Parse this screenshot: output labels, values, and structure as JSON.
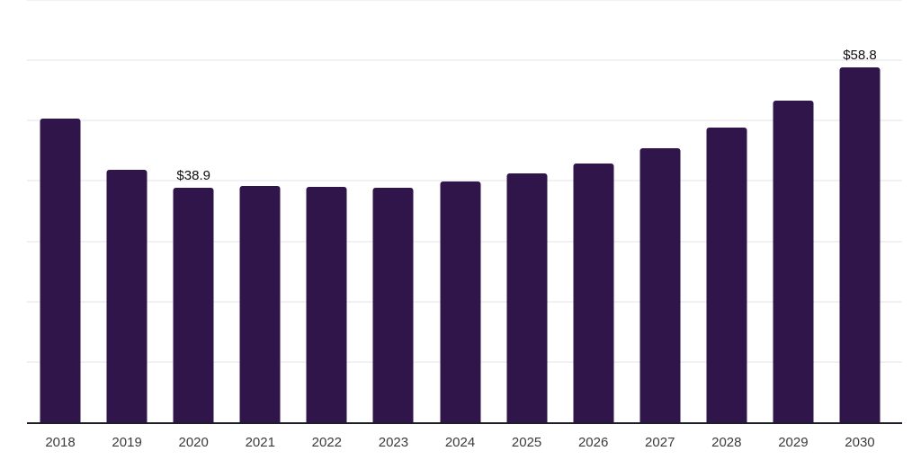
{
  "chart_data": {
    "type": "bar",
    "title": "",
    "xlabel": "",
    "ylabel": "",
    "categories": [
      "2018",
      "2019",
      "2020",
      "2021",
      "2022",
      "2023",
      "2024",
      "2025",
      "2026",
      "2027",
      "2028",
      "2029",
      "2030"
    ],
    "values": [
      50.4,
      41.8,
      38.9,
      39.1,
      39.0,
      38.9,
      39.9,
      41.2,
      42.9,
      45.4,
      48.9,
      53.3,
      58.8
    ],
    "data_labels": [
      "",
      "",
      "$38.9",
      "",
      "",
      "",
      "",
      "",
      "",
      "",
      "",
      "",
      "$58.8"
    ],
    "ylim": [
      0,
      70
    ],
    "gridline_step": 10,
    "grid": "horizontal",
    "y_tick_labels_visible": false,
    "legend": "none",
    "colors": {
      "background": "#ffffff",
      "bar": "#2f1549",
      "axis_line": "#1e1e28",
      "gridline": "#f1f1f3",
      "x_label": "#3b3b3b",
      "data_label": "#0e0e0e"
    }
  }
}
